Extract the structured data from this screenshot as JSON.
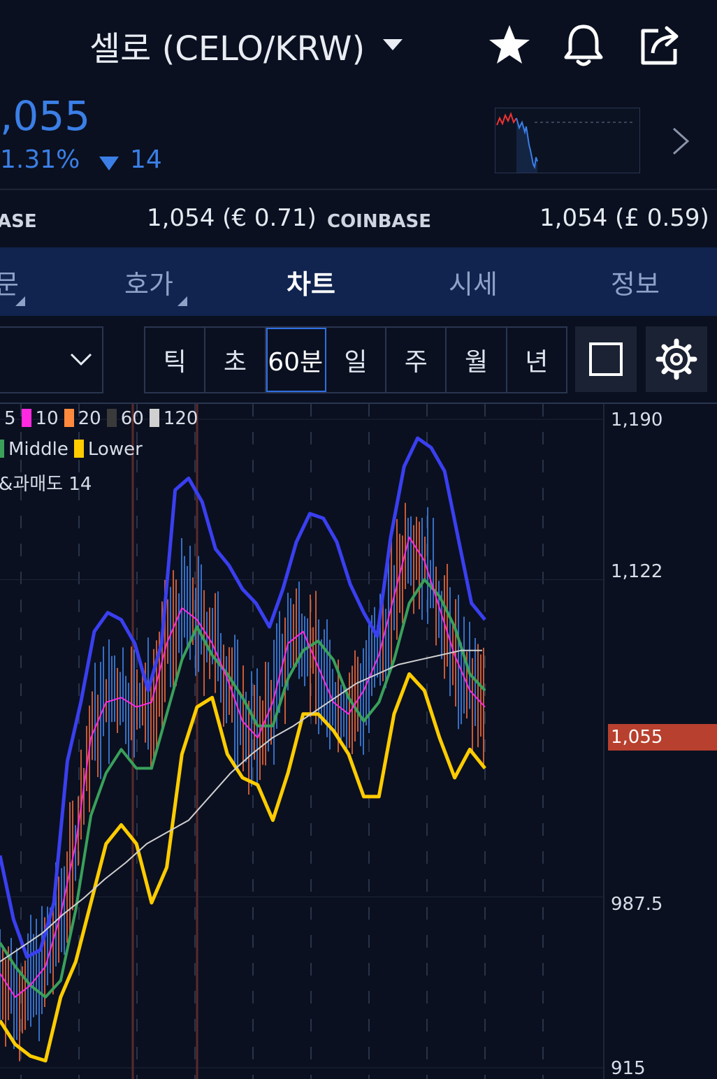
{
  "header": {
    "title": "셀로 (CELO/KRW)",
    "icons": [
      "star-icon",
      "bell-icon",
      "share-icon",
      "chevron-down-icon"
    ]
  },
  "price": {
    "current": ",055",
    "change_percent": "1.31%",
    "change_amount": "14",
    "direction": "down",
    "color": "#3b7fe6"
  },
  "exchanges": [
    {
      "name": "ASE",
      "value": "1,054 (€ 0.71)"
    },
    {
      "name": "COINBASE",
      "value": "1,054 (£ 0.59)"
    }
  ],
  "tabs": [
    {
      "label": "문",
      "active": false
    },
    {
      "label": "호가",
      "active": false
    },
    {
      "label": "차트",
      "active": true
    },
    {
      "label": "시세",
      "active": false
    },
    {
      "label": "정보",
      "active": false
    }
  ],
  "periods": [
    {
      "label": "틱",
      "active": false
    },
    {
      "label": "초",
      "active": false
    },
    {
      "label": "60분",
      "active": true
    },
    {
      "label": "일",
      "active": false
    },
    {
      "label": "주",
      "active": false
    },
    {
      "label": "월",
      "active": false
    },
    {
      "label": "년",
      "active": false
    }
  ],
  "legend": {
    "ma_periods": [
      "5",
      "10",
      "20",
      "60",
      "120"
    ],
    "ma_colors": [
      "#ff1f27",
      "#ff29e0",
      "#ff8a3d",
      "#3a3a3a",
      "#d0d0d0"
    ],
    "bollinger": [
      "Middle",
      "Lower"
    ],
    "bollinger_colors": [
      "#3aa05a",
      "#ffcc00"
    ],
    "indicator": "&과매도 14"
  },
  "y_axis": {
    "labels": [
      "1,190",
      "1,122",
      "987.5",
      "915"
    ],
    "current_price_label": "1,055",
    "current_price_color": "#b8402e"
  },
  "chart_data": {
    "type": "line",
    "ylim": [
      915,
      1190
    ],
    "y_ticks": [
      1190,
      1122,
      987.5,
      915
    ],
    "current_price": 1055,
    "series": [
      {
        "color": "#3a3ff0",
        "values": [
          1005,
          978,
          962,
          965,
          985,
          1045,
          1070,
          1100,
          1108,
          1105,
          1095,
          1075,
          1095,
          1160,
          1165,
          1155,
          1135,
          1128,
          1118,
          1112,
          1102,
          1118,
          1138,
          1150,
          1148,
          1138,
          1120,
          1108,
          1098,
          1140,
          1170,
          1182,
          1178,
          1168,
          1140,
          1112,
          1105
        ]
      },
      {
        "color": "#3aa05a",
        "values": [
          968,
          958,
          950,
          945,
          952,
          982,
          1022,
          1040,
          1050,
          1042,
          1042,
          1065,
          1088,
          1102,
          1090,
          1082,
          1072,
          1060,
          1060,
          1080,
          1092,
          1096,
          1088,
          1072,
          1062,
          1070,
          1088,
          1112,
          1122,
          1115,
          1102,
          1082,
          1075
        ]
      },
      {
        "color": "#ffcc00",
        "values": [
          935,
          925,
          920,
          918,
          945,
          960,
          985,
          1010,
          1018,
          1010,
          985,
          1000,
          1048,
          1068,
          1072,
          1048,
          1038,
          1035,
          1020,
          1040,
          1065,
          1065,
          1058,
          1048,
          1030,
          1030,
          1065,
          1082,
          1075,
          1055,
          1038,
          1050,
          1042
        ]
      },
      {
        "color": "#ff29e0",
        "values": [
          955,
          945,
          950,
          958,
          980,
          1010,
          1055,
          1070,
          1072,
          1068,
          1070,
          1095,
          1110,
          1105,
          1095,
          1080,
          1062,
          1055,
          1070,
          1095,
          1100,
          1085,
          1070,
          1065,
          1075,
          1090,
          1115,
          1140,
          1130,
          1110,
          1090,
          1075,
          1068
        ]
      },
      {
        "color": "#d0d0d0",
        "values": [
          960,
          966,
          972,
          980,
          987,
          995,
          1002,
          1010,
          1015,
          1020,
          1030,
          1040,
          1048,
          1055,
          1060,
          1066,
          1072,
          1078,
          1082,
          1086,
          1088,
          1090,
          1092,
          1092
        ]
      }
    ]
  }
}
